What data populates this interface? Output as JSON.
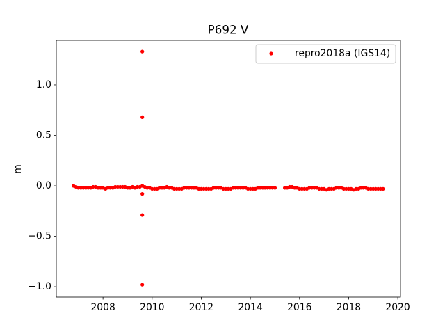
{
  "chart_data": {
    "type": "scatter",
    "title": "P692 V",
    "y_label": "m",
    "xlim": [
      2006.1,
      2020.11
    ],
    "ylim": [
      -1.103,
      1.441
    ],
    "xticks": [
      2008,
      2010,
      2012,
      2014,
      2016,
      2018,
      2020
    ],
    "yticks": [
      {
        "value": -1,
        "label": "−1.0"
      },
      {
        "value": -0.5,
        "label": "−0.5"
      },
      {
        "value": 0,
        "label": "0.0"
      },
      0.5,
      {
        "value": 1,
        "label": "1.0"
      }
    ],
    "grid": false,
    "legend": "upper right",
    "series": [
      {
        "name": "repro2018a (IGS14)",
        "color": "#ff0000",
        "x": [
          2006.8,
          2006.9,
          2007.0,
          2007.1,
          2007.2,
          2007.3,
          2007.4,
          2007.5,
          2007.6,
          2007.7,
          2007.8,
          2007.9,
          2008.0,
          2008.1,
          2008.2,
          2008.3,
          2008.4,
          2008.5,
          2008.6,
          2008.7,
          2008.8,
          2008.9,
          2009.0,
          2009.1,
          2009.2,
          2009.3,
          2009.4,
          2009.5,
          2009.6,
          2009.7,
          2009.8,
          2009.9,
          2010.0,
          2010.1,
          2010.2,
          2010.3,
          2010.4,
          2010.5,
          2010.6,
          2010.7,
          2010.8,
          2010.9,
          2011.0,
          2011.1,
          2011.2,
          2011.3,
          2011.4,
          2011.5,
          2011.6,
          2011.7,
          2011.8,
          2011.9,
          2012.0,
          2012.1,
          2012.2,
          2012.3,
          2012.4,
          2012.5,
          2012.6,
          2012.7,
          2012.8,
          2012.9,
          2013.0,
          2013.1,
          2013.2,
          2013.3,
          2013.4,
          2013.5,
          2013.6,
          2013.7,
          2013.8,
          2013.9,
          2014.0,
          2014.1,
          2014.2,
          2014.3,
          2014.4,
          2014.5,
          2014.6,
          2014.7,
          2014.8,
          2014.9,
          2015.0,
          2015.4,
          2015.5,
          2015.6,
          2015.7,
          2015.8,
          2015.9,
          2016.0,
          2016.1,
          2016.2,
          2016.3,
          2016.4,
          2016.5,
          2016.6,
          2016.7,
          2016.8,
          2016.9,
          2017.0,
          2017.1,
          2017.2,
          2017.3,
          2017.4,
          2017.5,
          2017.6,
          2017.7,
          2017.8,
          2017.9,
          2018.0,
          2018.1,
          2018.2,
          2018.3,
          2018.4,
          2018.5,
          2018.6,
          2018.7,
          2018.8,
          2018.9,
          2019.0,
          2019.1,
          2019.2,
          2019.3,
          2019.4,
          2009.6,
          2009.6,
          2009.6,
          2009.6,
          2009.6
        ],
        "values": [
          0.0,
          -0.01,
          -0.02,
          -0.02,
          -0.02,
          -0.02,
          -0.02,
          -0.02,
          -0.01,
          -0.01,
          -0.02,
          -0.02,
          -0.02,
          -0.03,
          -0.02,
          -0.02,
          -0.02,
          -0.01,
          -0.01,
          -0.01,
          -0.01,
          -0.01,
          -0.02,
          -0.02,
          -0.01,
          -0.02,
          -0.01,
          -0.01,
          0.0,
          -0.01,
          -0.02,
          -0.02,
          -0.03,
          -0.03,
          -0.03,
          -0.02,
          -0.02,
          -0.02,
          -0.01,
          -0.02,
          -0.02,
          -0.03,
          -0.03,
          -0.03,
          -0.03,
          -0.02,
          -0.02,
          -0.02,
          -0.02,
          -0.02,
          -0.02,
          -0.03,
          -0.03,
          -0.03,
          -0.03,
          -0.03,
          -0.03,
          -0.02,
          -0.02,
          -0.02,
          -0.02,
          -0.03,
          -0.03,
          -0.03,
          -0.03,
          -0.02,
          -0.02,
          -0.02,
          -0.02,
          -0.02,
          -0.02,
          -0.03,
          -0.03,
          -0.03,
          -0.03,
          -0.02,
          -0.02,
          -0.02,
          -0.02,
          -0.02,
          -0.02,
          -0.02,
          -0.02,
          -0.02,
          -0.02,
          -0.01,
          -0.01,
          -0.02,
          -0.02,
          -0.03,
          -0.03,
          -0.03,
          -0.03,
          -0.02,
          -0.02,
          -0.02,
          -0.02,
          -0.03,
          -0.03,
          -0.03,
          -0.04,
          -0.03,
          -0.03,
          -0.03,
          -0.02,
          -0.02,
          -0.02,
          -0.03,
          -0.03,
          -0.03,
          -0.03,
          -0.04,
          -0.03,
          -0.03,
          -0.02,
          -0.02,
          -0.02,
          -0.03,
          -0.03,
          -0.03,
          -0.03,
          -0.03,
          -0.03,
          -0.03,
          1.33,
          0.68,
          -0.08,
          -0.29,
          -0.98
        ]
      }
    ]
  }
}
